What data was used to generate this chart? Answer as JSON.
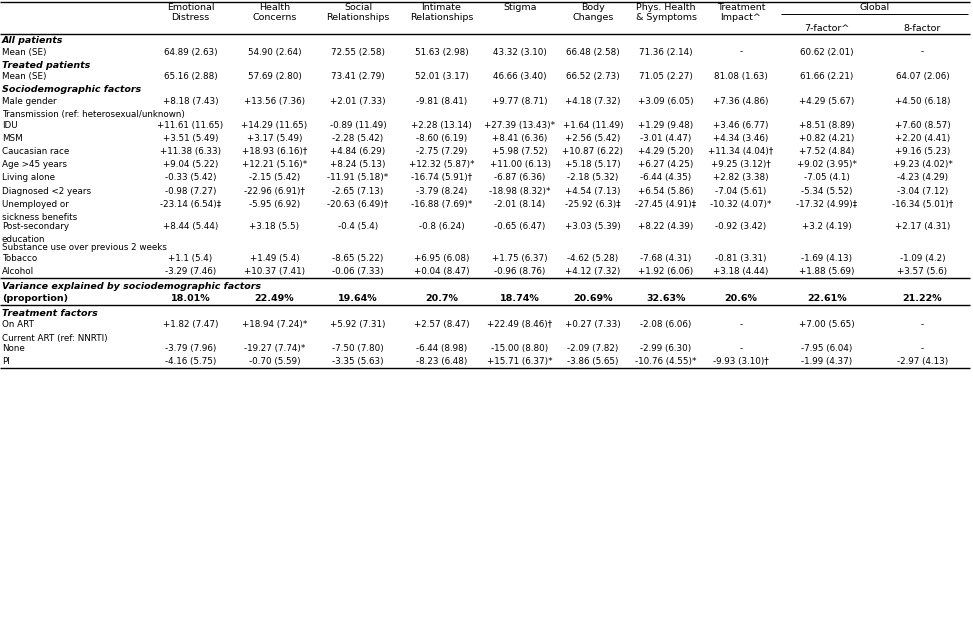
{
  "col_headers_line1": [
    "Emotional",
    "Health",
    "Social",
    "Intimate",
    "Stigma",
    "Body",
    "Phys. Health",
    "Treatment",
    "Global",
    ""
  ],
  "col_headers_line2": [
    "Distress",
    "Concerns",
    "Relationships",
    "Relationships",
    "",
    "Changes",
    "& Symptoms",
    "Impact^",
    "",
    ""
  ],
  "col_headers_sub": [
    "",
    "",
    "",
    "",
    "",
    "",
    "",
    "",
    "7-factor^",
    "8-factor"
  ],
  "global_header": "Global",
  "rows": [
    {
      "label": "All patients",
      "type": "section",
      "values": []
    },
    {
      "label": "Mean (SE)",
      "type": "data",
      "values": [
        "64.89 (2.63)",
        "54.90 (2.64)",
        "72.55 (2.58)",
        "51.63 (2.98)",
        "43.32 (3.10)",
        "66.48 (2.58)",
        "71.36 (2.14)",
        "-",
        "60.62 (2.01)",
        "-"
      ]
    },
    {
      "label": "Treated patients",
      "type": "section",
      "values": []
    },
    {
      "label": "Mean (SE)",
      "type": "data",
      "values": [
        "65.16 (2.88)",
        "57.69 (2.80)",
        "73.41 (2.79)",
        "52.01 (3.17)",
        "46.66 (3.40)",
        "66.52 (2.73)",
        "71.05 (2.27)",
        "81.08 (1.63)",
        "61.66 (2.21)",
        "64.07 (2.06)"
      ]
    },
    {
      "label": "Sociodemographic factors",
      "type": "section_bold",
      "values": []
    },
    {
      "label": "Male gender",
      "type": "data",
      "values": [
        "+8.18 (7.43)",
        "+13.56 (7.36)",
        "+2.01 (7.33)",
        "-9.81 (8.41)",
        "+9.77 (8.71)",
        "+4.18 (7.32)",
        "+3.09 (6.05)",
        "+7.36 (4.86)",
        "+4.29 (5.67)",
        "+4.50 (6.18)"
      ]
    },
    {
      "label": "Transmission (ref: heterosexual/unknown)",
      "type": "subheader",
      "values": []
    },
    {
      "label": "IDU",
      "type": "data",
      "values": [
        "+11.61 (11.65)",
        "+14.29 (11.65)",
        "-0.89 (11.49)",
        "+2.28 (13.14)",
        "+27.39 (13.43)*",
        "+1.64 (11.49)",
        "+1.29 (9.48)",
        "+3.46 (6.77)",
        "+8.51 (8.89)",
        "+7.60 (8.57)"
      ]
    },
    {
      "label": "MSM",
      "type": "data",
      "values": [
        "+3.51 (5.49)",
        "+3.17 (5.49)",
        "-2.28 (5.42)",
        "-8.60 (6.19)",
        "+8.41 (6.36)",
        "+2.56 (5.42)",
        "-3.01 (4.47)",
        "+4.34 (3.46)",
        "+0.82 (4.21)",
        "+2.20 (4.41)"
      ]
    },
    {
      "label": "Caucasian race",
      "type": "data",
      "values": [
        "+11.38 (6.33)",
        "+18.93 (6.16)†",
        "+4.84 (6.29)",
        "-2.75 (7.29)",
        "+5.98 (7.52)",
        "+10.87 (6.22)",
        "+4.29 (5.20)",
        "+11.34 (4.04)†",
        "+7.52 (4.84)",
        "+9.16 (5.23)"
      ]
    },
    {
      "label": "Age >45 years",
      "type": "data",
      "values": [
        "+9.04 (5.22)",
        "+12.21 (5.16)*",
        "+8.24 (5.13)",
        "+12.32 (5.87)*",
        "+11.00 (6.13)",
        "+5.18 (5.17)",
        "+6.27 (4.25)",
        "+9.25 (3.12)†",
        "+9.02 (3.95)*",
        "+9.23 (4.02)*"
      ]
    },
    {
      "label": "Living alone",
      "type": "data",
      "values": [
        "-0.33 (5.42)",
        "-2.15 (5.42)",
        "-11.91 (5.18)*",
        "-16.74 (5.91)†",
        "-6.87 (6.36)",
        "-2.18 (5.32)",
        "-6.44 (4.35)",
        "+2.82 (3.38)",
        "-7.05 (4.1)",
        "-4.23 (4.29)"
      ]
    },
    {
      "label": "Diagnosed <2 years",
      "type": "data",
      "values": [
        "-0.98 (7.27)",
        "-22.96 (6.91)†",
        "-2.65 (7.13)",
        "-3.79 (8.24)",
        "-18.98 (8.32)*",
        "+4.54 (7.13)",
        "+6.54 (5.86)",
        "-7.04 (5.61)",
        "-5.34 (5.52)",
        "-3.04 (7.12)"
      ]
    },
    {
      "label": "Unemployed or",
      "type": "data",
      "values": [
        "-23.14 (6.54)‡",
        "-5.95 (6.92)",
        "-20.63 (6.49)†",
        "-16.88 (7.69)*",
        "-2.01 (8.14)",
        "-25.92 (6.3)‡",
        "-27.45 (4.91)‡",
        "-10.32 (4.07)*",
        "-17.32 (4.99)‡",
        "-16.34 (5.01)†"
      ]
    },
    {
      "label": "sickness benefits",
      "type": "continuation",
      "values": []
    },
    {
      "label": "Post-secondary",
      "type": "data",
      "values": [
        "+8.44 (5.44)",
        "+3.18 (5.5)",
        "-0.4 (5.4)",
        "-0.8 (6.24)",
        "-0.65 (6.47)",
        "+3.03 (5.39)",
        "+8.22 (4.39)",
        "-0.92 (3.42)",
        "+3.2 (4.19)",
        "+2.17 (4.31)"
      ]
    },
    {
      "label": "education",
      "type": "continuation",
      "values": []
    },
    {
      "label": "Substance use over previous 2 weeks",
      "type": "subheader",
      "values": []
    },
    {
      "label": "Tobacco",
      "type": "data",
      "values": [
        "+1.1 (5.4)",
        "+1.49 (5.4)",
        "-8.65 (5.22)",
        "+6.95 (6.08)",
        "+1.75 (6.37)",
        "-4.62 (5.28)",
        "-7.68 (4.31)",
        "-0.81 (3.31)",
        "-1.69 (4.13)",
        "-1.09 (4.2)"
      ]
    },
    {
      "label": "Alcohol",
      "type": "data",
      "values": [
        "-3.29 (7.46)",
        "+10.37 (7.41)",
        "-0.06 (7.33)",
        "+0.04 (8.47)",
        "-0.96 (8.76)",
        "+4.12 (7.32)",
        "+1.92 (6.06)",
        "+3.18 (4.44)",
        "+1.88 (5.69)",
        "+3.57 (5.6)"
      ]
    },
    {
      "label": "Variance explained by sociodemographic factors",
      "type": "section_bold_line",
      "values": []
    },
    {
      "label": "(proportion)",
      "type": "data_bold",
      "values": [
        "18.01%",
        "22.49%",
        "19.64%",
        "20.7%",
        "18.74%",
        "20.69%",
        "32.63%",
        "20.6%",
        "22.61%",
        "21.22%"
      ]
    },
    {
      "label": "Treatment factors",
      "type": "section_bold_line",
      "values": []
    },
    {
      "label": "On ART",
      "type": "data",
      "values": [
        "+1.82 (7.47)",
        "+18.94 (7.24)*",
        "+5.92 (7.31)",
        "+2.57 (8.47)",
        "+22.49 (8.46)†",
        "+0.27 (7.33)",
        "-2.08 (6.06)",
        "-",
        "+7.00 (5.65)",
        "-"
      ]
    },
    {
      "label": "Current ART (ref: NNRTI)",
      "type": "subheader",
      "values": []
    },
    {
      "label": "None",
      "type": "data",
      "values": [
        "-3.79 (7.96)",
        "-19.27 (7.74)*",
        "-7.50 (7.80)",
        "-6.44 (8.98)",
        "-15.00 (8.80)",
        "-2.09 (7.82)",
        "-2.99 (6.30)",
        "-",
        "-7.95 (6.04)",
        "-"
      ]
    },
    {
      "label": "PI",
      "type": "data",
      "values": [
        "-4.16 (5.75)",
        "-0.70 (5.59)",
        "-3.35 (5.63)",
        "-8.23 (6.48)",
        "+15.71 (6.37)*",
        "-3.86 (5.65)",
        "-10.76 (4.55)*",
        "-9.93 (3.10)†",
        "-1.99 (4.37)",
        "-2.97 (4.13)"
      ]
    }
  ],
  "fs_header": 6.8,
  "fs_data": 6.3,
  "fs_section": 6.8,
  "lw_thick": 1.0,
  "lw_thin": 0.7
}
